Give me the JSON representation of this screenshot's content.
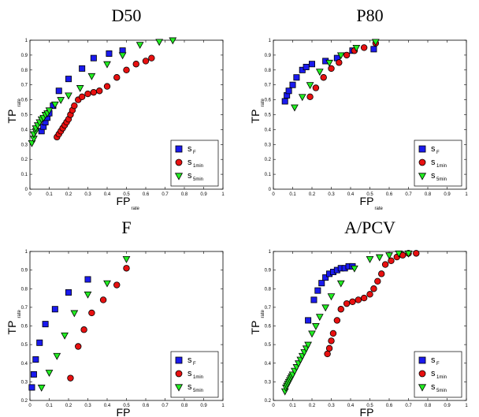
{
  "chart_data": [
    {
      "type": "scatter",
      "title": "D50",
      "xlabel": "FP",
      "xlabel_sub": "rate",
      "ylabel": "TP",
      "ylabel_sub": "rate",
      "xlim": [
        0,
        1
      ],
      "ylim": [
        0,
        1
      ],
      "xticks": [
        "0",
        "0.1",
        "0.2",
        "0.3",
        "0.4",
        "0.5",
        "0.6",
        "0.7",
        "0.8",
        "0.9",
        "1"
      ],
      "yticks": [
        "0",
        "0.1",
        "0.2",
        "0.3",
        "0.4",
        "0.5",
        "0.6",
        "0.7",
        "0.8",
        "0.9",
        "1"
      ],
      "grid": false,
      "legend": "bottom-right",
      "series": [
        {
          "name": "s",
          "name_sub": "F",
          "marker": "square",
          "color": "#1a1aee",
          "x": [
            0.06,
            0.07,
            0.08,
            0.09,
            0.1,
            0.12,
            0.15,
            0.2,
            0.27,
            0.33,
            0.41,
            0.48
          ],
          "y": [
            0.39,
            0.42,
            0.45,
            0.48,
            0.51,
            0.56,
            0.66,
            0.74,
            0.81,
            0.88,
            0.91,
            0.93
          ]
        },
        {
          "name": "s",
          "name_sub": "1min",
          "marker": "circle",
          "color": "#e81010",
          "x": [
            0.14,
            0.15,
            0.16,
            0.17,
            0.18,
            0.19,
            0.2,
            0.21,
            0.22,
            0.23,
            0.25,
            0.27,
            0.3,
            0.33,
            0.36,
            0.4,
            0.45,
            0.5,
            0.55,
            0.6,
            0.63
          ],
          "y": [
            0.35,
            0.37,
            0.39,
            0.41,
            0.43,
            0.45,
            0.47,
            0.5,
            0.53,
            0.56,
            0.6,
            0.62,
            0.64,
            0.65,
            0.66,
            0.69,
            0.75,
            0.8,
            0.84,
            0.86,
            0.88
          ]
        },
        {
          "name": "s",
          "name_sub": "5min",
          "marker": "triangle",
          "color": "#22ee22",
          "x": [
            0.01,
            0.02,
            0.02,
            0.03,
            0.03,
            0.04,
            0.05,
            0.06,
            0.07,
            0.08,
            0.09,
            0.1,
            0.13,
            0.16,
            0.2,
            0.26,
            0.32,
            0.4,
            0.48,
            0.57,
            0.67,
            0.74
          ],
          "y": [
            0.31,
            0.34,
            0.37,
            0.39,
            0.41,
            0.43,
            0.45,
            0.47,
            0.48,
            0.5,
            0.51,
            0.53,
            0.57,
            0.6,
            0.63,
            0.68,
            0.76,
            0.84,
            0.9,
            0.97,
            0.99,
            1.0
          ]
        }
      ]
    },
    {
      "type": "scatter",
      "title": "P80",
      "xlabel": "FP",
      "xlabel_sub": "rate",
      "ylabel": "TP",
      "ylabel_sub": "rate",
      "xlim": [
        0,
        1
      ],
      "ylim": [
        0,
        1
      ],
      "xticks": [
        "0",
        "0.1",
        "0.2",
        "0.3",
        "0.4",
        "0.5",
        "0.6",
        "0.7",
        "0.8",
        "0.9",
        "1"
      ],
      "yticks": [
        "0",
        "0.1",
        "0.2",
        "0.3",
        "0.4",
        "0.5",
        "0.6",
        "0.7",
        "0.8",
        "0.9",
        "1"
      ],
      "grid": false,
      "legend": "bottom-right",
      "series": [
        {
          "name": "s",
          "name_sub": "F",
          "marker": "square",
          "color": "#1a1aee",
          "x": [
            0.06,
            0.07,
            0.08,
            0.1,
            0.12,
            0.15,
            0.17,
            0.2,
            0.27,
            0.33,
            0.41,
            0.52
          ],
          "y": [
            0.59,
            0.63,
            0.66,
            0.7,
            0.75,
            0.8,
            0.82,
            0.84,
            0.86,
            0.88,
            0.93,
            0.94
          ]
        },
        {
          "name": "s",
          "name_sub": "1min",
          "marker": "circle",
          "color": "#e81010",
          "x": [
            0.19,
            0.22,
            0.26,
            0.3,
            0.34,
            0.38,
            0.42,
            0.47,
            0.53
          ],
          "y": [
            0.62,
            0.68,
            0.75,
            0.81,
            0.85,
            0.9,
            0.93,
            0.95,
            0.98
          ]
        },
        {
          "name": "s",
          "name_sub": "5min",
          "marker": "triangle",
          "color": "#22ee22",
          "x": [
            0.11,
            0.15,
            0.19,
            0.24,
            0.29,
            0.35,
            0.43,
            0.53
          ],
          "y": [
            0.55,
            0.62,
            0.7,
            0.79,
            0.85,
            0.9,
            0.95,
            0.99
          ]
        }
      ]
    },
    {
      "type": "scatter",
      "title": "F",
      "xlabel": "FP",
      "xlabel_sub": "rate",
      "ylabel": "TP",
      "ylabel_sub": "rate",
      "xlim": [
        0,
        1
      ],
      "ylim": [
        0.2,
        1
      ],
      "xticks": [
        "0",
        "0.1",
        "0.2",
        "0.3",
        "0.4",
        "0.5",
        "0.6",
        "0.7",
        "0.8",
        "0.9",
        "1"
      ],
      "yticks": [
        "0.2",
        "0.3",
        "0.4",
        "0.5",
        "0.6",
        "0.7",
        "0.8",
        "0.9",
        "1"
      ],
      "grid": false,
      "legend": "bottom-right",
      "series": [
        {
          "name": "s",
          "name_sub": "F",
          "marker": "square",
          "color": "#1a1aee",
          "x": [
            0.01,
            0.02,
            0.03,
            0.05,
            0.08,
            0.13,
            0.2,
            0.3
          ],
          "y": [
            0.27,
            0.34,
            0.42,
            0.51,
            0.61,
            0.69,
            0.78,
            0.85
          ]
        },
        {
          "name": "s",
          "name_sub": "1min",
          "marker": "circle",
          "color": "#e81010",
          "x": [
            0.21,
            0.25,
            0.28,
            0.32,
            0.38,
            0.45,
            0.5
          ],
          "y": [
            0.32,
            0.49,
            0.58,
            0.67,
            0.74,
            0.82,
            0.91
          ]
        },
        {
          "name": "s",
          "name_sub": "5min",
          "marker": "triangle",
          "color": "#22ee22",
          "x": [
            0.06,
            0.1,
            0.14,
            0.18,
            0.23,
            0.3,
            0.4,
            0.5
          ],
          "y": [
            0.27,
            0.35,
            0.44,
            0.55,
            0.67,
            0.77,
            0.83,
            0.96
          ]
        }
      ]
    },
    {
      "type": "scatter",
      "title": "A/PCV",
      "xlabel": "FP",
      "xlabel_sub": "rate",
      "ylabel": "TP",
      "ylabel_sub": "rate",
      "xlim": [
        0,
        1
      ],
      "ylim": [
        0.2,
        1
      ],
      "xticks": [
        "0",
        "0.1",
        "0.2",
        "0.3",
        "0.4",
        "0.5",
        "0.6",
        "0.7",
        "0.8",
        "0.9",
        "1"
      ],
      "yticks": [
        "0.2",
        "0.3",
        "0.4",
        "0.5",
        "0.6",
        "0.7",
        "0.8",
        "0.9",
        "1"
      ],
      "grid": false,
      "legend": "bottom-right",
      "series": [
        {
          "name": "s",
          "name_sub": "F",
          "marker": "square",
          "color": "#1a1aee",
          "x": [
            0.18,
            0.21,
            0.23,
            0.25,
            0.27,
            0.29,
            0.31,
            0.33,
            0.35,
            0.37,
            0.39,
            0.41
          ],
          "y": [
            0.63,
            0.74,
            0.79,
            0.83,
            0.86,
            0.88,
            0.89,
            0.9,
            0.91,
            0.91,
            0.92,
            0.92
          ]
        },
        {
          "name": "s",
          "name_sub": "1min",
          "marker": "circle",
          "color": "#e81010",
          "x": [
            0.28,
            0.29,
            0.3,
            0.31,
            0.33,
            0.35,
            0.38,
            0.41,
            0.44,
            0.47,
            0.5,
            0.52,
            0.54,
            0.56,
            0.58,
            0.61,
            0.64,
            0.67,
            0.7,
            0.74
          ],
          "y": [
            0.45,
            0.48,
            0.52,
            0.56,
            0.63,
            0.69,
            0.72,
            0.73,
            0.74,
            0.75,
            0.77,
            0.8,
            0.84,
            0.88,
            0.93,
            0.95,
            0.97,
            0.98,
            0.99,
            0.99
          ]
        },
        {
          "name": "s",
          "name_sub": "5min",
          "marker": "triangle",
          "color": "#22ee22",
          "x": [
            0.06,
            0.065,
            0.07,
            0.075,
            0.08,
            0.085,
            0.09,
            0.095,
            0.1,
            0.11,
            0.12,
            0.13,
            0.14,
            0.15,
            0.16,
            0.17,
            0.18,
            0.2,
            0.22,
            0.24,
            0.27,
            0.3,
            0.35,
            0.42,
            0.5,
            0.55,
            0.6,
            0.65,
            0.7
          ],
          "y": [
            0.25,
            0.27,
            0.28,
            0.29,
            0.3,
            0.31,
            0.32,
            0.33,
            0.34,
            0.36,
            0.38,
            0.4,
            0.42,
            0.44,
            0.46,
            0.48,
            0.5,
            0.56,
            0.6,
            0.65,
            0.7,
            0.76,
            0.83,
            0.91,
            0.96,
            0.97,
            0.98,
            0.99,
            0.99
          ]
        }
      ]
    }
  ]
}
